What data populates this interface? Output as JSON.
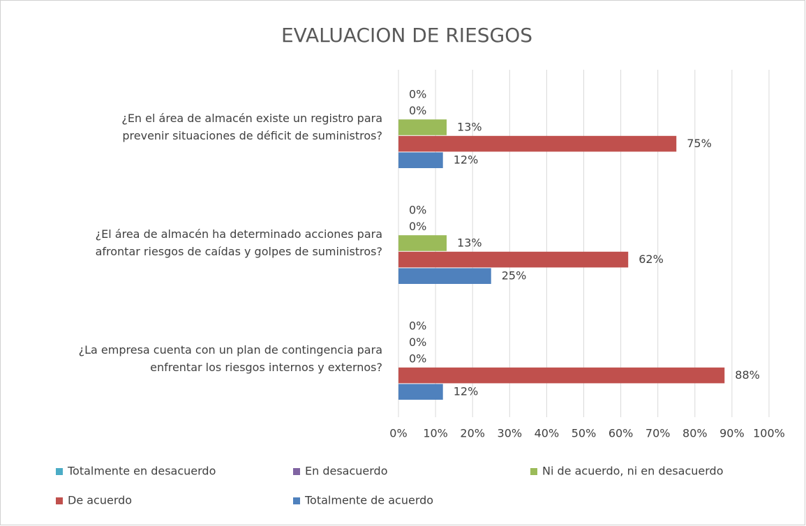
{
  "chart_data": {
    "type": "hbar",
    "title": "EVALUACION DE RIESGOS",
    "categories": [
      [
        "¿En el área de almacén existe un registro para",
        "prevenir situaciones de déficit de suministros?"
      ],
      [
        "¿El área de almacén ha determinado acciones para",
        "afrontar riesgos de caídas y golpes de suministros?"
      ],
      [
        "¿La empresa cuenta con un plan de contingencia para",
        "enfrentar los riesgos internos y externos?"
      ]
    ],
    "series": [
      {
        "name": "Totalmente en desacuerdo",
        "color": "#4bacc6",
        "values": [
          0,
          0,
          0
        ],
        "value_labels": [
          "0%",
          "0%",
          "0%"
        ]
      },
      {
        "name": "En desacuerdo",
        "color": "#8064a2",
        "values": [
          0,
          0,
          0
        ],
        "value_labels": [
          "0%",
          "0%",
          "0%"
        ]
      },
      {
        "name": "Ni de acuerdo, ni en desacuerdo",
        "color": "#9bbb59",
        "values": [
          13,
          13,
          0
        ],
        "value_labels": [
          "13%",
          "13%",
          "0%"
        ]
      },
      {
        "name": "De acuerdo",
        "color": "#c0504d",
        "values": [
          75,
          62,
          88
        ],
        "value_labels": [
          "75%",
          "62%",
          "88%"
        ]
      },
      {
        "name": "Totalmente de acuerdo",
        "color": "#4f81bd",
        "values": [
          12,
          25,
          12
        ],
        "value_labels": [
          "12%",
          "25%",
          "12%"
        ]
      }
    ],
    "xlim": [
      0,
      100
    ],
    "xticks": [
      {
        "value": 0,
        "label": "0%"
      },
      {
        "value": 10,
        "label": "10%"
      },
      {
        "value": 20,
        "label": "20%"
      },
      {
        "value": 30,
        "label": "30%"
      },
      {
        "value": 40,
        "label": "40%"
      },
      {
        "value": 50,
        "label": "50%"
      },
      {
        "value": 60,
        "label": "60%"
      },
      {
        "value": 70,
        "label": "70%"
      },
      {
        "value": 80,
        "label": "80%"
      },
      {
        "value": 90,
        "label": "90%"
      },
      {
        "value": 100,
        "label": "100%"
      }
    ],
    "grid": true,
    "legend": "bottom"
  }
}
